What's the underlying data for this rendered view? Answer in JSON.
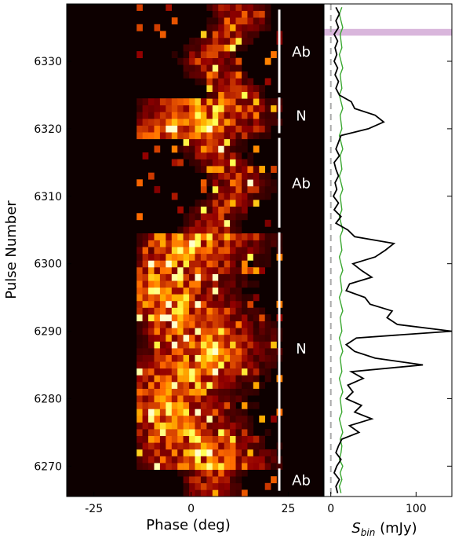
{
  "chart_data": [
    {
      "type": "heatmap",
      "xlabel": "Phase (deg)",
      "ylabel": "Pulse Number",
      "xlim": [
        -32,
        34
      ],
      "ylim": [
        6265.5,
        6338.5
      ],
      "x_ticks": [
        -25,
        0,
        25
      ],
      "y_ticks": [
        6270,
        6280,
        6290,
        6300,
        6310,
        6320,
        6330
      ],
      "pulse_range": [
        6266,
        6338
      ],
      "phase_bin_width_deg": 1.5,
      "colormap": "afmhot (black-red-orange-yellow-white)",
      "mode_segments": [
        {
          "label": "Ab",
          "start": 6266,
          "end": 6270
        },
        {
          "label": "N",
          "start": 6270,
          "end": 6305
        },
        {
          "label": "Ab",
          "start": 6305,
          "end": 6319
        },
        {
          "label": "N",
          "start": 6319,
          "end": 6325
        },
        {
          "label": "Ab",
          "start": 6325,
          "end": 6338
        }
      ],
      "intensity_notes": "Emission concentrated between about -10 and +15 deg; broad bright emission in N segments, sparse narrower emission in Ab segments."
    },
    {
      "type": "line",
      "xlabel": "S_bin (mJy)",
      "x_ticks": [
        0,
        100
      ],
      "xlim": [
        -8,
        142
      ],
      "ylim": [
        6265.5,
        6338.5
      ],
      "horizontal_band": {
        "pulse_range": [
          6333.8,
          6334.8
        ],
        "color": "#d9b6dc"
      },
      "dashed_reference_x": 0,
      "series": [
        {
          "color": "#000000",
          "points": [
            [
              8,
              6266
            ],
            [
              6,
              6267
            ],
            [
              10,
              6268
            ],
            [
              4,
              6269
            ],
            [
              7,
              6270
            ],
            [
              12,
              6271
            ],
            [
              6,
              6272
            ],
            [
              9,
              6273
            ],
            [
              13,
              6274
            ],
            [
              33,
              6275
            ],
            [
              22,
              6276
            ],
            [
              48,
              6277
            ],
            [
              28,
              6278
            ],
            [
              36,
              6279
            ],
            [
              18,
              6280
            ],
            [
              26,
              6281
            ],
            [
              20,
              6282
            ],
            [
              38,
              6283
            ],
            [
              24,
              6284
            ],
            [
              108,
              6285
            ],
            [
              52,
              6286
            ],
            [
              28,
              6287
            ],
            [
              18,
              6288
            ],
            [
              30,
              6289
            ],
            [
              142,
              6290
            ],
            [
              78,
              6291
            ],
            [
              66,
              6292
            ],
            [
              72,
              6293
            ],
            [
              46,
              6294
            ],
            [
              40,
              6295
            ],
            [
              18,
              6296
            ],
            [
              22,
              6297
            ],
            [
              48,
              6298
            ],
            [
              36,
              6299
            ],
            [
              26,
              6300
            ],
            [
              52,
              6301
            ],
            [
              64,
              6302
            ],
            [
              74,
              6303
            ],
            [
              28,
              6304
            ],
            [
              20,
              6305
            ],
            [
              6,
              6306
            ],
            [
              12,
              6307
            ],
            [
              4,
              6308
            ],
            [
              9,
              6309
            ],
            [
              3,
              6310
            ],
            [
              7,
              6311
            ],
            [
              5,
              6312
            ],
            [
              9,
              6313
            ],
            [
              6,
              6314
            ],
            [
              4,
              6315
            ],
            [
              10,
              6316
            ],
            [
              6,
              6317
            ],
            [
              9,
              6318
            ],
            [
              12,
              6319
            ],
            [
              44,
              6320
            ],
            [
              62,
              6321
            ],
            [
              52,
              6322
            ],
            [
              28,
              6323
            ],
            [
              24,
              6324
            ],
            [
              10,
              6325
            ],
            [
              6,
              6326
            ],
            [
              9,
              6327
            ],
            [
              5,
              6328
            ],
            [
              8,
              6329
            ],
            [
              4,
              6330
            ],
            [
              7,
              6331
            ],
            [
              5,
              6332
            ],
            [
              8,
              6333
            ],
            [
              4,
              6334
            ],
            [
              9,
              6335
            ],
            [
              6,
              6336
            ],
            [
              10,
              6337
            ],
            [
              6,
              6338
            ]
          ]
        },
        {
          "color": "#3aa830",
          "points": [
            [
              12,
              6266
            ],
            [
              10,
              6267
            ],
            [
              13,
              6268
            ],
            [
              11,
              6269
            ],
            [
              14,
              6270
            ],
            [
              10,
              6271
            ],
            [
              12,
              6272
            ],
            [
              13,
              6273
            ],
            [
              11,
              6274
            ],
            [
              14,
              6275
            ],
            [
              12,
              6276
            ],
            [
              10,
              6277
            ],
            [
              13,
              6278
            ],
            [
              12,
              6279
            ],
            [
              11,
              6280
            ],
            [
              14,
              6281
            ],
            [
              12,
              6282
            ],
            [
              10,
              6283
            ],
            [
              13,
              6284
            ],
            [
              12,
              6285
            ],
            [
              11,
              6286
            ],
            [
              14,
              6287
            ],
            [
              12,
              6288
            ],
            [
              10,
              6289
            ],
            [
              13,
              6290
            ],
            [
              12,
              6291
            ],
            [
              11,
              6292
            ],
            [
              14,
              6293
            ],
            [
              12,
              6294
            ],
            [
              10,
              6295
            ],
            [
              13,
              6296
            ],
            [
              12,
              6297
            ],
            [
              11,
              6298
            ],
            [
              14,
              6299
            ],
            [
              12,
              6300
            ],
            [
              10,
              6301
            ],
            [
              13,
              6302
            ],
            [
              12,
              6303
            ],
            [
              11,
              6304
            ],
            [
              14,
              6305
            ],
            [
              12,
              6306
            ],
            [
              10,
              6307
            ],
            [
              13,
              6308
            ],
            [
              12,
              6309
            ],
            [
              11,
              6310
            ],
            [
              14,
              6311
            ],
            [
              12,
              6312
            ],
            [
              10,
              6313
            ],
            [
              13,
              6314
            ],
            [
              12,
              6315
            ],
            [
              11,
              6316
            ],
            [
              14,
              6317
            ],
            [
              12,
              6318
            ],
            [
              10,
              6319
            ],
            [
              13,
              6320
            ],
            [
              12,
              6321
            ],
            [
              11,
              6322
            ],
            [
              14,
              6323
            ],
            [
              12,
              6324
            ],
            [
              10,
              6325
            ],
            [
              13,
              6326
            ],
            [
              12,
              6327
            ],
            [
              11,
              6328
            ],
            [
              14,
              6329
            ],
            [
              12,
              6330
            ],
            [
              10,
              6331
            ],
            [
              13,
              6332
            ],
            [
              12,
              6333
            ],
            [
              11,
              6334
            ],
            [
              14,
              6335
            ],
            [
              12,
              6336
            ],
            [
              10,
              6337
            ],
            [
              13,
              6338
            ]
          ]
        }
      ]
    }
  ]
}
